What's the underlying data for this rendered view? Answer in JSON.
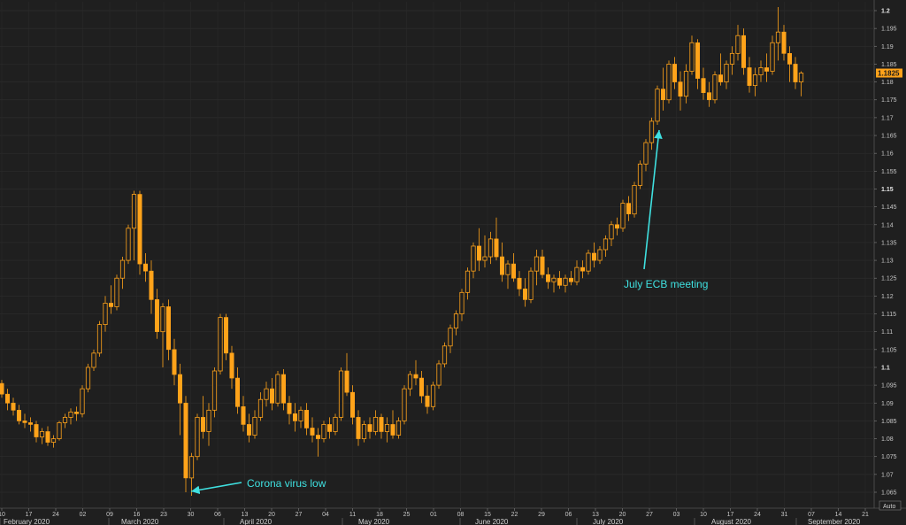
{
  "chart_data": {
    "type": "candlestick",
    "instrument_last_label": "1.1825",
    "y_ticks": [
      "1.2",
      "1.195",
      "1.19",
      "1.185",
      "1.18",
      "1.175",
      "1.17",
      "1.165",
      "1.16",
      "1.155",
      "1.15",
      "1.145",
      "1.14",
      "1.135",
      "1.13",
      "1.125",
      "1.12",
      "1.115",
      "1.11",
      "1.105",
      "1.1",
      "1.095",
      "1.09",
      "1.085",
      "1.08",
      "1.075",
      "1.07",
      "1.065"
    ],
    "y_bold_ticks": [
      "1.2",
      "1.15",
      "1.1"
    ],
    "ylim": [
      1.061,
      1.2025
    ],
    "x_day_ticks": [
      "10",
      "17",
      "24",
      "02",
      "09",
      "16",
      "23",
      "30",
      "06",
      "13",
      "20",
      "27",
      "04",
      "11",
      "18",
      "25",
      "01",
      "08",
      "15",
      "22",
      "29",
      "06",
      "13",
      "20",
      "27",
      "03",
      "10",
      "17",
      "24",
      "31",
      "07",
      "14",
      "21"
    ],
    "months": [
      "February 2020",
      "March 2020",
      "April 2020",
      "May 2020",
      "June 2020",
      "July 2020",
      "August 2020",
      "September 2020"
    ],
    "axis_button": "Auto",
    "colors": {
      "up": "#ffa31a",
      "down": "#ffa31a",
      "background": "#1f1f1f",
      "grid": "#2e2e2e",
      "annotation": "#3fe0e0",
      "last_price_tag": "#ffa31a"
    },
    "grid": true,
    "annotations": [
      {
        "text": "Corona virus low",
        "date_index": 32
      },
      {
        "text": "July ECB meeting",
        "date_index": 114
      }
    ],
    "ohlc": [
      [
        1.0955,
        1.0965,
        1.0915,
        1.0925
      ],
      [
        1.0925,
        1.094,
        1.088,
        1.09
      ],
      [
        1.09,
        1.0915,
        1.0865,
        1.088
      ],
      [
        1.088,
        1.0895,
        1.084,
        1.085
      ],
      [
        1.085,
        1.087,
        1.083,
        1.0845
      ],
      [
        1.0845,
        1.086,
        1.082,
        1.084
      ],
      [
        1.084,
        1.085,
        1.079,
        1.0805
      ],
      [
        1.0805,
        1.083,
        1.0785,
        1.082
      ],
      [
        1.082,
        1.0835,
        1.078,
        1.079
      ],
      [
        1.079,
        1.081,
        1.0775,
        1.08
      ],
      [
        1.08,
        1.085,
        1.0795,
        1.0845
      ],
      [
        1.0845,
        1.087,
        1.083,
        1.086
      ],
      [
        1.086,
        1.0885,
        1.084,
        1.0875
      ],
      [
        1.0875,
        1.089,
        1.085,
        1.087
      ],
      [
        1.087,
        1.095,
        1.086,
        1.094
      ],
      [
        1.094,
        1.101,
        1.093,
        1.1
      ],
      [
        1.1,
        1.105,
        1.099,
        1.104
      ],
      [
        1.104,
        1.113,
        1.103,
        1.112
      ],
      [
        1.112,
        1.12,
        1.11,
        1.118
      ],
      [
        1.118,
        1.123,
        1.115,
        1.117
      ],
      [
        1.117,
        1.126,
        1.116,
        1.125
      ],
      [
        1.125,
        1.131,
        1.122,
        1.13
      ],
      [
        1.13,
        1.14,
        1.129,
        1.139
      ],
      [
        1.139,
        1.1495,
        1.13,
        1.1485
      ],
      [
        1.1485,
        1.1495,
        1.126,
        1.129
      ],
      [
        1.129,
        1.132,
        1.124,
        1.127
      ],
      [
        1.127,
        1.13,
        1.115,
        1.119
      ],
      [
        1.119,
        1.122,
        1.108,
        1.11
      ],
      [
        1.11,
        1.118,
        1.1,
        1.117
      ],
      [
        1.117,
        1.119,
        1.102,
        1.105
      ],
      [
        1.105,
        1.108,
        1.095,
        1.098
      ],
      [
        1.098,
        1.101,
        1.081,
        1.09
      ],
      [
        1.09,
        1.092,
        1.065,
        1.069
      ],
      [
        1.069,
        1.076,
        1.064,
        1.075
      ],
      [
        1.075,
        1.087,
        1.074,
        1.086
      ],
      [
        1.086,
        1.092,
        1.08,
        1.082
      ],
      [
        1.082,
        1.09,
        1.078,
        1.088
      ],
      [
        1.088,
        1.1,
        1.086,
        1.099
      ],
      [
        1.099,
        1.115,
        1.098,
        1.114
      ],
      [
        1.114,
        1.115,
        1.102,
        1.104
      ],
      [
        1.104,
        1.106,
        1.094,
        1.097
      ],
      [
        1.097,
        1.1,
        1.087,
        1.089
      ],
      [
        1.089,
        1.092,
        1.082,
        1.084
      ],
      [
        1.084,
        1.087,
        1.079,
        1.081
      ],
      [
        1.081,
        1.088,
        1.08,
        1.086
      ],
      [
        1.086,
        1.093,
        1.085,
        1.091
      ],
      [
        1.091,
        1.096,
        1.089,
        1.094
      ],
      [
        1.094,
        1.097,
        1.088,
        1.09
      ],
      [
        1.09,
        1.099,
        1.089,
        1.098
      ],
      [
        1.098,
        1.0995,
        1.088,
        1.09
      ],
      [
        1.09,
        1.092,
        1.084,
        1.087
      ],
      [
        1.087,
        1.09,
        1.082,
        1.085
      ],
      [
        1.085,
        1.089,
        1.083,
        1.088
      ],
      [
        1.088,
        1.09,
        1.081,
        1.083
      ],
      [
        1.083,
        1.086,
        1.079,
        1.081
      ],
      [
        1.081,
        1.083,
        1.075,
        1.08
      ],
      [
        1.08,
        1.085,
        1.079,
        1.084
      ],
      [
        1.084,
        1.086,
        1.08,
        1.082
      ],
      [
        1.082,
        1.087,
        1.081,
        1.086
      ],
      [
        1.086,
        1.1,
        1.085,
        1.099
      ],
      [
        1.099,
        1.104,
        1.092,
        1.093
      ],
      [
        1.093,
        1.095,
        1.084,
        1.086
      ],
      [
        1.086,
        1.088,
        1.078,
        1.08
      ],
      [
        1.08,
        1.085,
        1.079,
        1.084
      ],
      [
        1.084,
        1.086,
        1.08,
        1.082
      ],
      [
        1.082,
        1.088,
        1.081,
        1.086
      ],
      [
        1.086,
        1.087,
        1.08,
        1.082
      ],
      [
        1.082,
        1.086,
        1.079,
        1.084
      ],
      [
        1.084,
        1.088,
        1.08,
        1.081
      ],
      [
        1.081,
        1.086,
        1.08,
        1.085
      ],
      [
        1.085,
        1.095,
        1.084,
        1.094
      ],
      [
        1.094,
        1.099,
        1.092,
        1.098
      ],
      [
        1.098,
        1.102,
        1.095,
        1.097
      ],
      [
        1.097,
        1.099,
        1.09,
        1.092
      ],
      [
        1.092,
        1.095,
        1.087,
        1.089
      ],
      [
        1.089,
        1.096,
        1.088,
        1.095
      ],
      [
        1.095,
        1.102,
        1.094,
        1.101
      ],
      [
        1.101,
        1.107,
        1.1,
        1.106
      ],
      [
        1.106,
        1.112,
        1.104,
        1.111
      ],
      [
        1.111,
        1.116,
        1.109,
        1.115
      ],
      [
        1.115,
        1.122,
        1.113,
        1.121
      ],
      [
        1.121,
        1.128,
        1.119,
        1.127
      ],
      [
        1.127,
        1.135,
        1.125,
        1.134
      ],
      [
        1.134,
        1.139,
        1.127,
        1.13
      ],
      [
        1.13,
        1.137,
        1.128,
        1.131
      ],
      [
        1.131,
        1.138,
        1.129,
        1.136
      ],
      [
        1.136,
        1.142,
        1.13,
        1.131
      ],
      [
        1.131,
        1.135,
        1.124,
        1.126
      ],
      [
        1.126,
        1.13,
        1.122,
        1.129
      ],
      [
        1.129,
        1.132,
        1.124,
        1.125
      ],
      [
        1.125,
        1.127,
        1.12,
        1.122
      ],
      [
        1.122,
        1.125,
        1.117,
        1.119
      ],
      [
        1.119,
        1.128,
        1.118,
        1.127
      ],
      [
        1.127,
        1.133,
        1.123,
        1.131
      ],
      [
        1.131,
        1.133,
        1.125,
        1.126
      ],
      [
        1.126,
        1.128,
        1.122,
        1.124
      ],
      [
        1.124,
        1.126,
        1.121,
        1.125
      ],
      [
        1.125,
        1.127,
        1.122,
        1.123
      ],
      [
        1.123,
        1.126,
        1.121,
        1.125
      ],
      [
        1.125,
        1.127,
        1.123,
        1.124
      ],
      [
        1.124,
        1.13,
        1.123,
        1.128
      ],
      [
        1.128,
        1.13,
        1.125,
        1.127
      ],
      [
        1.127,
        1.133,
        1.126,
        1.132
      ],
      [
        1.132,
        1.135,
        1.128,
        1.13
      ],
      [
        1.13,
        1.134,
        1.129,
        1.133
      ],
      [
        1.133,
        1.137,
        1.131,
        1.136
      ],
      [
        1.136,
        1.141,
        1.134,
        1.14
      ],
      [
        1.14,
        1.142,
        1.137,
        1.139
      ],
      [
        1.139,
        1.147,
        1.138,
        1.146
      ],
      [
        1.146,
        1.148,
        1.141,
        1.143
      ],
      [
        1.143,
        1.152,
        1.142,
        1.151
      ],
      [
        1.151,
        1.158,
        1.15,
        1.157
      ],
      [
        1.157,
        1.164,
        1.155,
        1.163
      ],
      [
        1.163,
        1.17,
        1.161,
        1.169
      ],
      [
        1.169,
        1.179,
        1.168,
        1.178
      ],
      [
        1.178,
        1.184,
        1.172,
        1.175
      ],
      [
        1.175,
        1.186,
        1.174,
        1.185
      ],
      [
        1.185,
        1.187,
        1.178,
        1.18
      ],
      [
        1.18,
        1.183,
        1.172,
        1.176
      ],
      [
        1.176,
        1.185,
        1.174,
        1.183
      ],
      [
        1.183,
        1.193,
        1.182,
        1.191
      ],
      [
        1.191,
        1.192,
        1.178,
        1.181
      ],
      [
        1.181,
        1.184,
        1.175,
        1.177
      ],
      [
        1.177,
        1.18,
        1.173,
        1.175
      ],
      [
        1.175,
        1.183,
        1.174,
        1.182
      ],
      [
        1.182,
        1.188,
        1.179,
        1.18
      ],
      [
        1.18,
        1.186,
        1.178,
        1.185
      ],
      [
        1.185,
        1.19,
        1.182,
        1.188
      ],
      [
        1.188,
        1.196,
        1.186,
        1.193
      ],
      [
        1.193,
        1.195,
        1.182,
        1.184
      ],
      [
        1.184,
        1.187,
        1.177,
        1.179
      ],
      [
        1.179,
        1.184,
        1.176,
        1.182
      ],
      [
        1.182,
        1.186,
        1.18,
        1.184
      ],
      [
        1.184,
        1.188,
        1.18,
        1.183
      ],
      [
        1.183,
        1.193,
        1.182,
        1.191
      ],
      [
        1.191,
        1.201,
        1.186,
        1.194
      ],
      [
        1.194,
        1.196,
        1.186,
        1.188
      ],
      [
        1.188,
        1.19,
        1.18,
        1.185
      ],
      [
        1.185,
        1.187,
        1.178,
        1.18
      ],
      [
        1.18,
        1.183,
        1.176,
        1.1825
      ]
    ]
  }
}
